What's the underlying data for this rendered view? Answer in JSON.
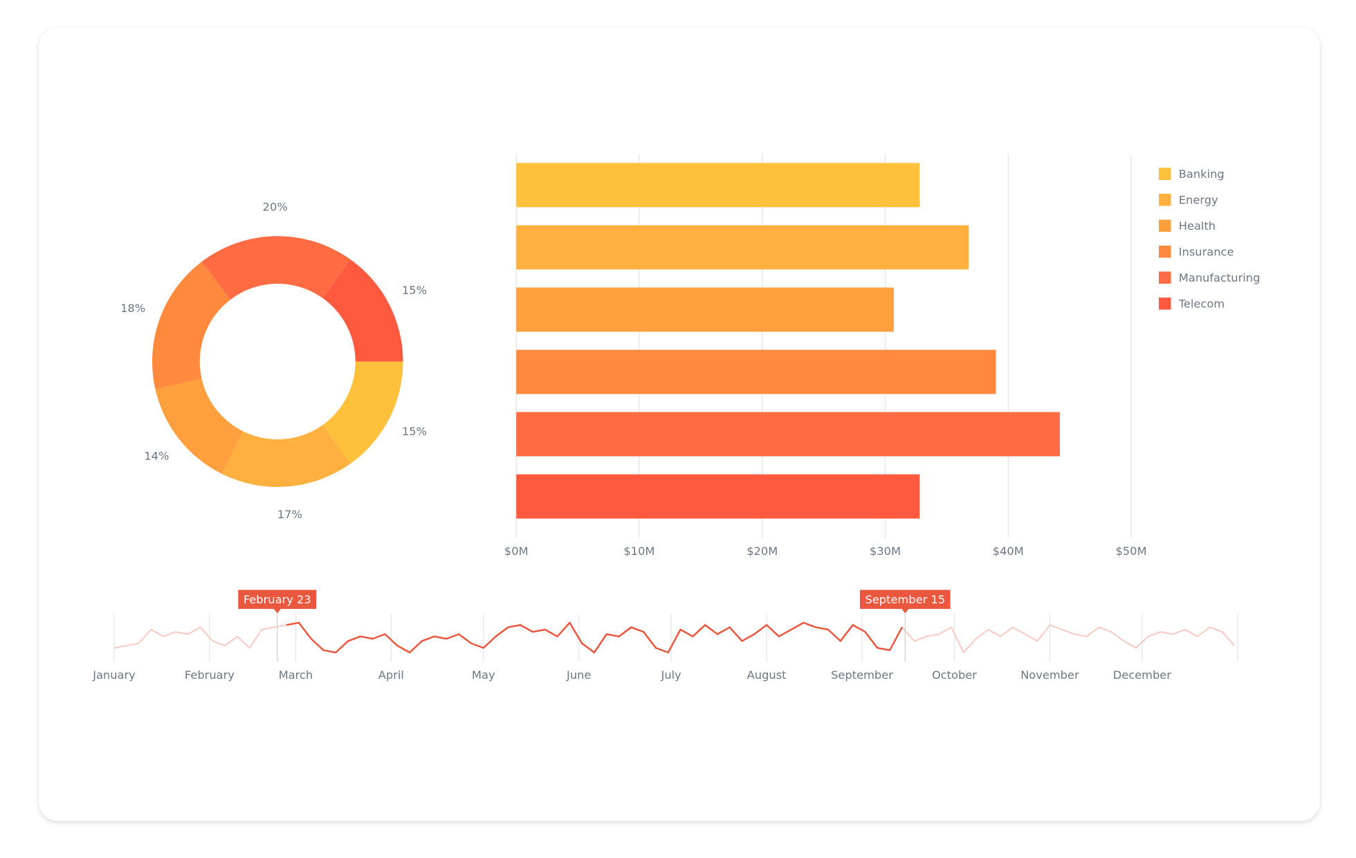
{
  "chart_data": [
    {
      "type": "donut",
      "categories": [
        "Banking",
        "Energy",
        "Health",
        "Insurance",
        "Manufacturing",
        "Telecom"
      ],
      "values": [
        15,
        17,
        14,
        18,
        20,
        15
      ],
      "value_labels": [
        "15%",
        "17%",
        "14%",
        "18%",
        "20%",
        "15%"
      ],
      "colors": [
        "#FFC13B",
        "#FFB03F",
        "#FF9F3E",
        "#FF8A3E",
        "#FF6B42",
        "#FF5A40"
      ]
    },
    {
      "type": "bar",
      "orientation": "horizontal",
      "categories": [
        "Banking",
        "Energy",
        "Health",
        "Insurance",
        "Manufacturing",
        "Telecom"
      ],
      "values": [
        32.8,
        36.8,
        30.7,
        39,
        44.2,
        32.8
      ],
      "colors": [
        "#FFC13B",
        "#FFB03F",
        "#FF9F3E",
        "#FF8A3E",
        "#FF6B42",
        "#FF5A40"
      ],
      "xlim": [
        0,
        50
      ],
      "xticks": [
        {
          "value": 0,
          "label": "$0M"
        },
        {
          "value": 10,
          "label": "$10M"
        },
        {
          "value": 20,
          "label": "$20M"
        },
        {
          "value": 30,
          "label": "$30M"
        },
        {
          "value": 40,
          "label": "$40M"
        },
        {
          "value": 50,
          "label": "$50M"
        }
      ],
      "grid": true,
      "legend": "top-right"
    },
    {
      "type": "line",
      "x": [
        0,
        4,
        8,
        12,
        16,
        20,
        24,
        28,
        32,
        36,
        40,
        44,
        48,
        52,
        56,
        60,
        64,
        68,
        72,
        76,
        80,
        84,
        88,
        92,
        96,
        100,
        104,
        108,
        112,
        116,
        120,
        124,
        128,
        132,
        136,
        140,
        144,
        148,
        152,
        156,
        160,
        164,
        168,
        172,
        176,
        180,
        184,
        188,
        192,
        196,
        200,
        204,
        208,
        212,
        216,
        220,
        224,
        228,
        232,
        236,
        240,
        244,
        248,
        252,
        256,
        260,
        264,
        268,
        272,
        276,
        280,
        284,
        288,
        292,
        296,
        300,
        304,
        308,
        312,
        316,
        320,
        324,
        328,
        332,
        336,
        340,
        344,
        348,
        352,
        356,
        360,
        364
      ],
      "values": [
        30,
        35,
        40,
        70,
        55,
        65,
        60,
        75,
        45,
        35,
        55,
        30,
        70,
        75,
        80,
        85,
        50,
        25,
        20,
        45,
        55,
        50,
        60,
        35,
        20,
        45,
        55,
        50,
        60,
        40,
        30,
        55,
        75,
        80,
        65,
        70,
        55,
        85,
        40,
        20,
        60,
        55,
        75,
        65,
        30,
        20,
        70,
        55,
        80,
        60,
        75,
        45,
        60,
        80,
        55,
        70,
        85,
        75,
        70,
        45,
        80,
        65,
        30,
        25,
        75,
        45,
        55,
        60,
        75,
        20,
        50,
        70,
        55,
        75,
        60,
        45,
        80,
        70,
        60,
        55,
        75,
        65,
        45,
        30,
        55,
        65,
        60,
        70,
        55,
        75,
        65,
        35
      ],
      "ylim": [
        0,
        100
      ],
      "xlim": [
        0,
        365
      ],
      "xticks": [
        {
          "value": 0,
          "label": "January"
        },
        {
          "value": 31,
          "label": "February"
        },
        {
          "value": 59,
          "label": "March"
        },
        {
          "value": 90,
          "label": "April"
        },
        {
          "value": 120,
          "label": "May"
        },
        {
          "value": 151,
          "label": "June"
        },
        {
          "value": 181,
          "label": "July"
        },
        {
          "value": 212,
          "label": "August"
        },
        {
          "value": 243,
          "label": "September"
        },
        {
          "value": 273,
          "label": "October"
        },
        {
          "value": 304,
          "label": "November"
        },
        {
          "value": 334,
          "label": "December"
        }
      ],
      "selection": [
        {
          "value": 53,
          "label": "February 23"
        },
        {
          "value": 257,
          "label": "September 15"
        }
      ],
      "color": "#E9573F",
      "faded_color": "#F8C9BF"
    }
  ]
}
